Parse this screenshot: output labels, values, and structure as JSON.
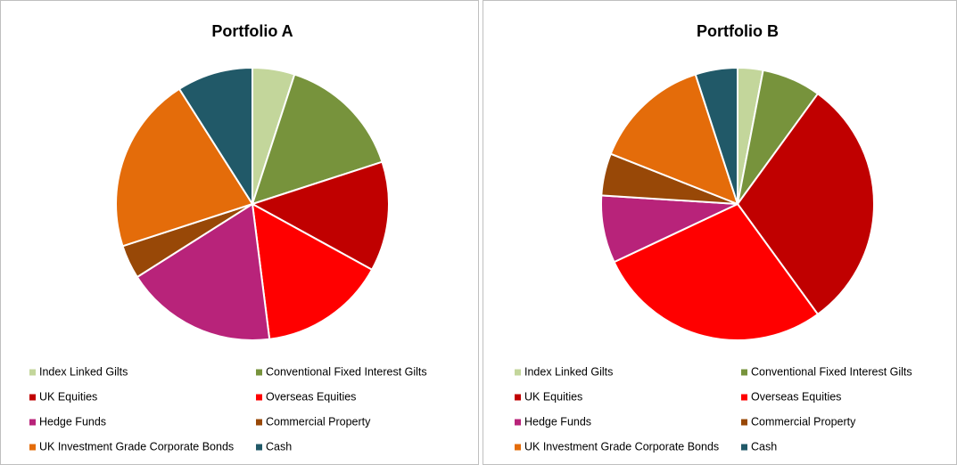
{
  "chart_data": [
    {
      "type": "pie",
      "title": "Portfolio A",
      "categories": [
        "Index Linked Gilts",
        "Conventional Fixed Interest Gilts",
        "UK Equities",
        "Overseas Equities",
        "Hedge Funds",
        "Commercial Property",
        "UK Investment Grade Corporate Bonds",
        "Cash"
      ],
      "values": [
        5,
        15,
        13,
        15,
        18,
        4,
        21,
        9
      ],
      "colors": [
        "#c3d69b",
        "#77933c",
        "#c00000",
        "#ff0000",
        "#b8237a",
        "#984807",
        "#e46c0a",
        "#215968"
      ]
    },
    {
      "type": "pie",
      "title": "Portfolio B",
      "categories": [
        "Index Linked Gilts",
        "Conventional Fixed Interest Gilts",
        "UK Equities",
        "Overseas Equities",
        "Hedge Funds",
        "Commercial Property",
        "UK Investment Grade Corporate Bonds",
        "Cash"
      ],
      "values": [
        3,
        7,
        30,
        28,
        8,
        5,
        14,
        5
      ],
      "colors": [
        "#c3d69b",
        "#77933c",
        "#c00000",
        "#ff0000",
        "#b8237a",
        "#984807",
        "#e46c0a",
        "#215968"
      ]
    }
  ]
}
